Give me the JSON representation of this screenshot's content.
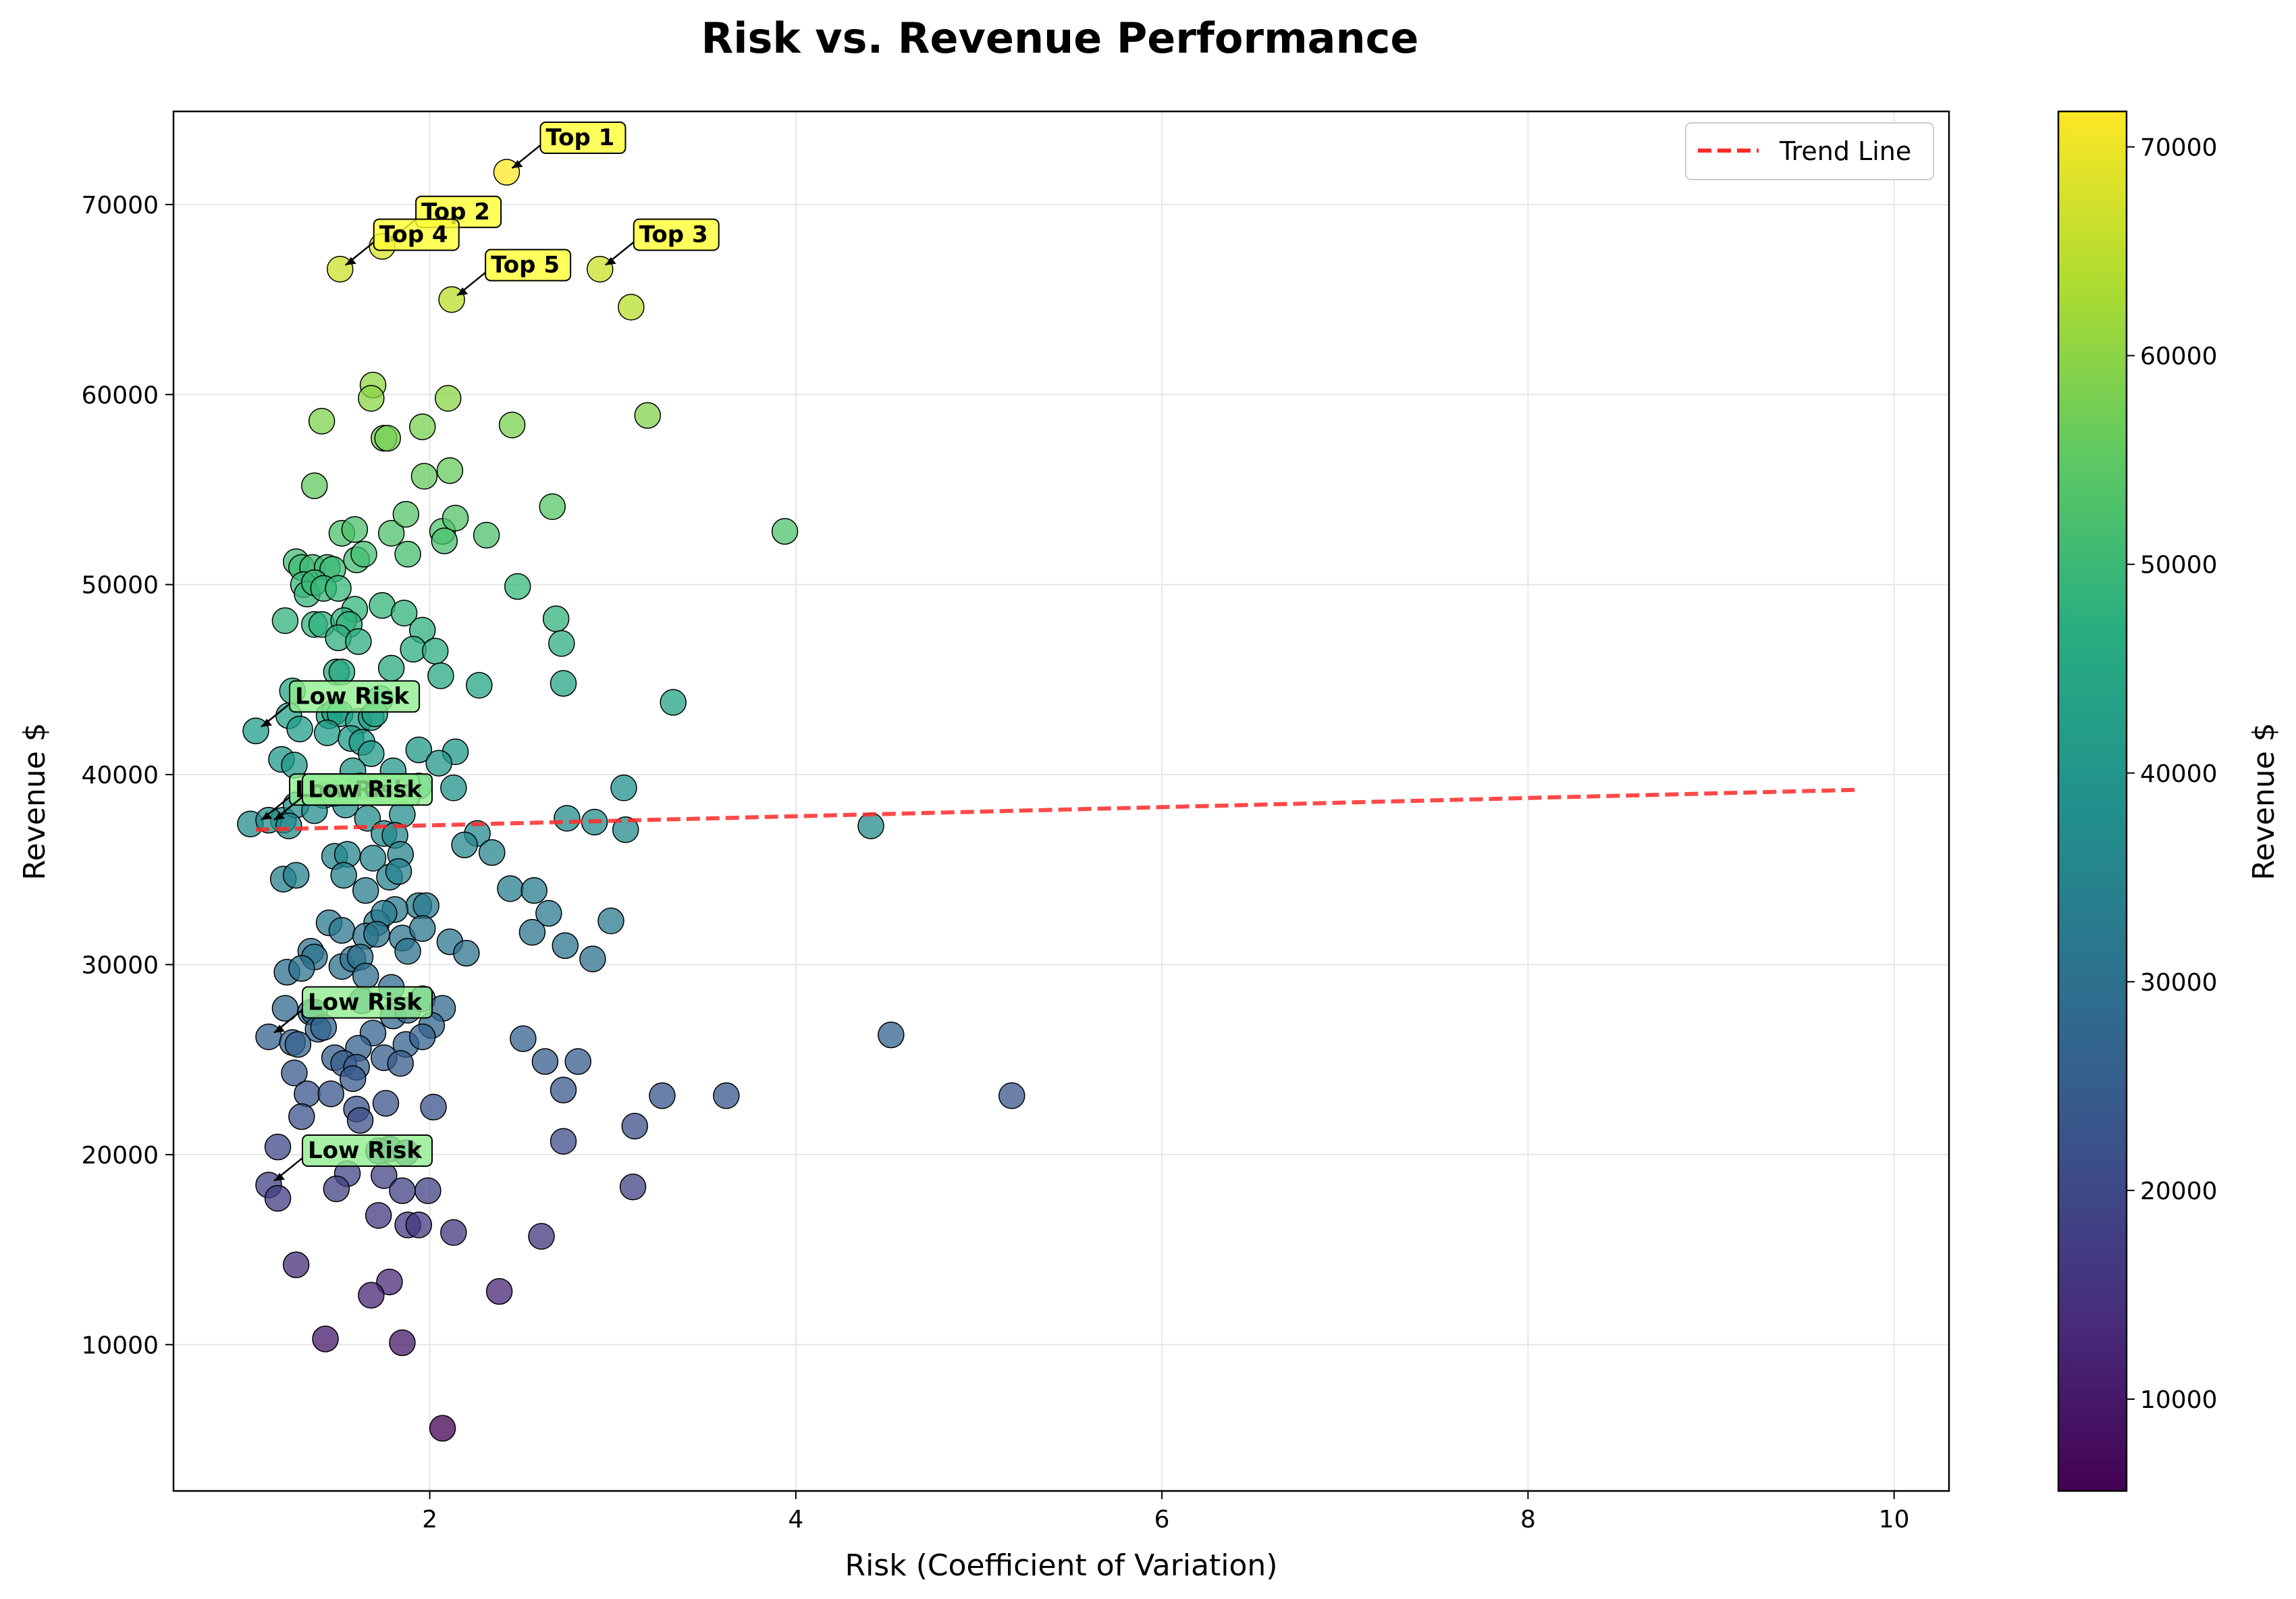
{
  "chart_data": {
    "type": "scatter",
    "title": "Risk vs. Revenue Performance",
    "xlabel": "Risk (Coefficient of Variation)",
    "ylabel": "Revenue $",
    "xlim": [
      0.6,
      10.3
    ],
    "ylim": [
      2300,
      74900
    ],
    "xticks": [
      2,
      4,
      6,
      8,
      10
    ],
    "yticks": [
      10000,
      20000,
      30000,
      40000,
      50000,
      60000,
      70000
    ],
    "grid": true,
    "colormap": "viridis",
    "colorbar": {
      "label": "Revenue $",
      "min": 5600,
      "max": 71700,
      "ticks": [
        10000,
        20000,
        30000,
        40000,
        50000,
        60000,
        70000
      ]
    },
    "legend": {
      "position": "top-right",
      "entries": [
        {
          "label": "Trend Line",
          "color": "#ff2a2a",
          "style": "dashed"
        }
      ]
    },
    "trend_line": {
      "x": [
        1.05,
        9.8
      ],
      "y": [
        37100,
        39200
      ],
      "color": "#ff2a2a"
    },
    "annotations": [
      {
        "text": "Top 1",
        "x": 2.42,
        "y": 71700,
        "color": "#ffff33"
      },
      {
        "text": "Top 2",
        "x": 1.74,
        "y": 67800,
        "color": "#ffff33"
      },
      {
        "text": "Top 3",
        "x": 2.93,
        "y": 66600,
        "color": "#ffff33"
      },
      {
        "text": "Top 4",
        "x": 1.51,
        "y": 66600,
        "color": "#ffff33"
      },
      {
        "text": "Top 5",
        "x": 2.12,
        "y": 65000,
        "color": "#ffff33"
      },
      {
        "text": "Low Risk",
        "x": 1.05,
        "y": 42300,
        "color": "#90ee90"
      },
      {
        "text": "Low Risk",
        "x": 1.05,
        "y": 37400,
        "color": "#90ee90"
      },
      {
        "text": "Low Risk",
        "x": 1.12,
        "y": 37400,
        "color": "#90ee90"
      },
      {
        "text": "Low Risk",
        "x": 1.12,
        "y": 26200,
        "color": "#90ee90"
      },
      {
        "text": "Low Risk",
        "x": 1.12,
        "y": 18400,
        "color": "#90ee90"
      }
    ],
    "points": [
      [
        2.42,
        71700
      ],
      [
        1.74,
        67800
      ],
      [
        1.51,
        66600
      ],
      [
        2.93,
        66600
      ],
      [
        3.1,
        64600
      ],
      [
        2.12,
        65000
      ],
      [
        1.69,
        60500
      ],
      [
        1.68,
        59800
      ],
      [
        2.1,
        59800
      ],
      [
        1.41,
        58600
      ],
      [
        1.96,
        58300
      ],
      [
        2.45,
        58400
      ],
      [
        3.19,
        58900
      ],
      [
        1.75,
        57700
      ],
      [
        1.77,
        57700
      ],
      [
        1.97,
        55700
      ],
      [
        2.11,
        56000
      ],
      [
        1.37,
        55200
      ],
      [
        2.67,
        54100
      ],
      [
        1.52,
        52700
      ],
      [
        1.59,
        52900
      ],
      [
        1.79,
        52700
      ],
      [
        1.87,
        53700
      ],
      [
        2.07,
        52800
      ],
      [
        2.14,
        53500
      ],
      [
        2.31,
        52600
      ],
      [
        3.94,
        52800
      ],
      [
        1.27,
        51200
      ],
      [
        1.3,
        50900
      ],
      [
        1.36,
        50900
      ],
      [
        1.44,
        50900
      ],
      [
        1.47,
        50800
      ],
      [
        1.6,
        51300
      ],
      [
        1.64,
        51600
      ],
      [
        1.88,
        51600
      ],
      [
        2.08,
        52300
      ],
      [
        1.31,
        50000
      ],
      [
        1.33,
        49500
      ],
      [
        1.37,
        50100
      ],
      [
        1.42,
        49800
      ],
      [
        1.5,
        49800
      ],
      [
        2.48,
        49900
      ],
      [
        1.59,
        48700
      ],
      [
        1.74,
        48900
      ],
      [
        1.86,
        48500
      ],
      [
        1.21,
        48100
      ],
      [
        1.37,
        47900
      ],
      [
        1.41,
        47900
      ],
      [
        1.53,
        48100
      ],
      [
        1.56,
        47900
      ],
      [
        1.96,
        47600
      ],
      [
        2.69,
        48200
      ],
      [
        1.5,
        47200
      ],
      [
        1.61,
        47000
      ],
      [
        1.91,
        46600
      ],
      [
        2.03,
        46500
      ],
      [
        2.72,
        46900
      ],
      [
        1.49,
        45400
      ],
      [
        1.52,
        45400
      ],
      [
        1.79,
        45600
      ],
      [
        2.06,
        45200
      ],
      [
        2.27,
        44700
      ],
      [
        2.73,
        44800
      ],
      [
        1.25,
        44400
      ],
      [
        1.73,
        44000
      ],
      [
        3.33,
        43800
      ],
      [
        1.23,
        43100
      ],
      [
        1.45,
        43100
      ],
      [
        1.48,
        43300
      ],
      [
        1.51,
        43200
      ],
      [
        1.61,
        42800
      ],
      [
        1.68,
        43000
      ],
      [
        1.7,
        43200
      ],
      [
        1.05,
        42300
      ],
      [
        1.29,
        42400
      ],
      [
        1.44,
        42200
      ],
      [
        1.57,
        41900
      ],
      [
        1.63,
        41700
      ],
      [
        1.19,
        40800
      ],
      [
        1.26,
        40500
      ],
      [
        1.68,
        41100
      ],
      [
        1.94,
        41300
      ],
      [
        2.14,
        41200
      ],
      [
        2.05,
        40600
      ],
      [
        1.8,
        40200
      ],
      [
        1.58,
        40200
      ],
      [
        1.42,
        38900
      ],
      [
        1.48,
        39000
      ],
      [
        1.62,
        39400
      ],
      [
        1.94,
        39400
      ],
      [
        2.13,
        39300
      ],
      [
        3.06,
        39300
      ],
      [
        1.2,
        37600
      ],
      [
        1.27,
        38400
      ],
      [
        1.37,
        38100
      ],
      [
        1.54,
        38400
      ],
      [
        1.66,
        37700
      ],
      [
        1.85,
        37900
      ],
      [
        2.75,
        37700
      ],
      [
        2.9,
        37500
      ],
      [
        4.41,
        37300
      ],
      [
        1.02,
        37400
      ],
      [
        1.12,
        37600
      ],
      [
        1.23,
        37300
      ],
      [
        1.75,
        36900
      ],
      [
        1.81,
        36800
      ],
      [
        2.26,
        36900
      ],
      [
        3.07,
        37100
      ],
      [
        1.48,
        35700
      ],
      [
        1.55,
        35800
      ],
      [
        1.69,
        35600
      ],
      [
        1.84,
        35800
      ],
      [
        2.19,
        36300
      ],
      [
        2.34,
        35900
      ],
      [
        1.2,
        34500
      ],
      [
        1.27,
        34700
      ],
      [
        1.53,
        34700
      ],
      [
        1.65,
        33900
      ],
      [
        1.78,
        34600
      ],
      [
        1.83,
        34900
      ],
      [
        1.94,
        33100
      ],
      [
        1.98,
        33100
      ],
      [
        2.44,
        34000
      ],
      [
        2.57,
        33900
      ],
      [
        1.81,
        32900
      ],
      [
        1.71,
        32200
      ],
      [
        1.75,
        32700
      ],
      [
        2.65,
        32700
      ],
      [
        2.99,
        32300
      ],
      [
        1.45,
        32200
      ],
      [
        1.52,
        31800
      ],
      [
        1.65,
        31500
      ],
      [
        1.71,
        31600
      ],
      [
        1.85,
        31400
      ],
      [
        1.96,
        31900
      ],
      [
        2.11,
        31200
      ],
      [
        2.56,
        31700
      ],
      [
        2.74,
        31000
      ],
      [
        1.35,
        30700
      ],
      [
        1.37,
        30400
      ],
      [
        1.52,
        29900
      ],
      [
        1.58,
        30300
      ],
      [
        1.62,
        30400
      ],
      [
        1.88,
        30700
      ],
      [
        2.2,
        30600
      ],
      [
        2.89,
        30300
      ],
      [
        1.22,
        29600
      ],
      [
        1.3,
        29800
      ],
      [
        1.65,
        29400
      ],
      [
        1.79,
        28800
      ],
      [
        1.21,
        27700
      ],
      [
        1.35,
        27500
      ],
      [
        1.37,
        27500
      ],
      [
        1.63,
        28100
      ],
      [
        1.8,
        27300
      ],
      [
        1.88,
        27600
      ],
      [
        1.96,
        28200
      ],
      [
        2.07,
        27700
      ],
      [
        1.39,
        26600
      ],
      [
        1.42,
        26700
      ],
      [
        1.69,
        26400
      ],
      [
        2.01,
        26800
      ],
      [
        4.52,
        26300
      ],
      [
        1.12,
        26200
      ],
      [
        1.25,
        25900
      ],
      [
        1.28,
        25800
      ],
      [
        1.48,
        25100
      ],
      [
        1.61,
        25600
      ],
      [
        1.87,
        25800
      ],
      [
        1.96,
        26200
      ],
      [
        2.51,
        26100
      ],
      [
        1.26,
        24300
      ],
      [
        1.53,
        24800
      ],
      [
        1.6,
        24600
      ],
      [
        1.75,
        25100
      ],
      [
        1.84,
        24800
      ],
      [
        2.63,
        24900
      ],
      [
        2.81,
        24900
      ],
      [
        1.33,
        23200
      ],
      [
        1.46,
        23200
      ],
      [
        1.58,
        24000
      ],
      [
        1.76,
        22700
      ],
      [
        2.02,
        22500
      ],
      [
        2.73,
        23400
      ],
      [
        3.27,
        23100
      ],
      [
        3.62,
        23100
      ],
      [
        5.18,
        23100
      ],
      [
        1.3,
        22000
      ],
      [
        1.6,
        22400
      ],
      [
        1.62,
        21800
      ],
      [
        1.78,
        20300
      ],
      [
        3.12,
        21500
      ],
      [
        1.17,
        20400
      ],
      [
        1.72,
        20200
      ],
      [
        1.87,
        20100
      ],
      [
        2.73,
        20700
      ],
      [
        1.55,
        19000
      ],
      [
        1.75,
        18900
      ],
      [
        1.12,
        18400
      ],
      [
        1.17,
        17700
      ],
      [
        1.49,
        18200
      ],
      [
        1.85,
        18100
      ],
      [
        1.99,
        18100
      ],
      [
        3.11,
        18300
      ],
      [
        1.72,
        16800
      ],
      [
        1.88,
        16300
      ],
      [
        1.94,
        16300
      ],
      [
        2.13,
        15900
      ],
      [
        2.61,
        15700
      ],
      [
        1.27,
        14200
      ],
      [
        1.78,
        13300
      ],
      [
        1.68,
        12600
      ],
      [
        2.38,
        12800
      ],
      [
        1.43,
        10300
      ],
      [
        1.85,
        10100
      ],
      [
        2.07,
        5600
      ]
    ]
  }
}
